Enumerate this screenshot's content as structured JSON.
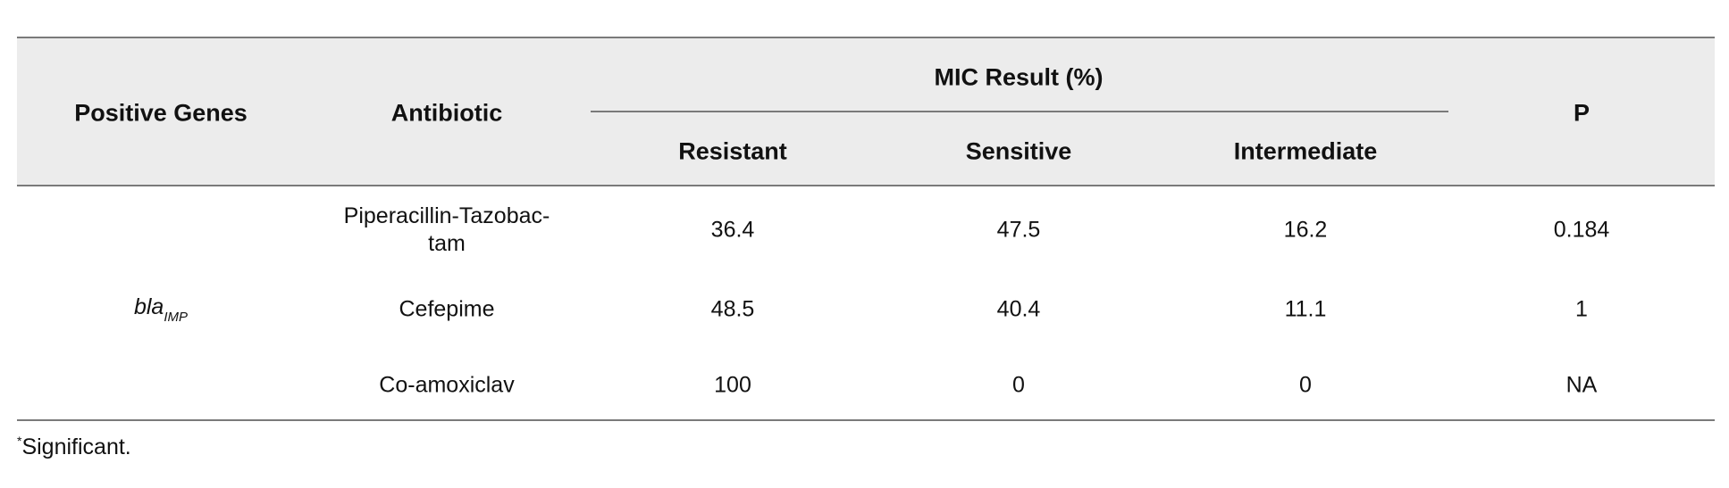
{
  "table": {
    "header": {
      "positive_genes": "Positive Genes",
      "antibiotic": "Antibiotic",
      "group": "MIC Result (%)",
      "resistant": "Resistant",
      "sensitive": "Sensitive",
      "intermediate": "Intermediate",
      "p": "P"
    },
    "gene": {
      "name": "bla",
      "subscript": "IMP"
    },
    "rows": [
      {
        "antibiotic": [
          "Piperacillin-Tazobac-",
          "tam"
        ],
        "resistant": "36.4",
        "sensitive": "47.5",
        "intermediate": "16.2",
        "p": "0.184"
      },
      {
        "antibiotic": [
          "Cefepime"
        ],
        "resistant": "48.5",
        "sensitive": "40.4",
        "intermediate": "11.1",
        "p": "1"
      },
      {
        "antibiotic": [
          "Co-amoxiclav"
        ],
        "resistant": "100",
        "sensitive": "0",
        "intermediate": "0",
        "p": "NA"
      }
    ],
    "footnote": {
      "mark": "*",
      "text": "Significant."
    }
  }
}
